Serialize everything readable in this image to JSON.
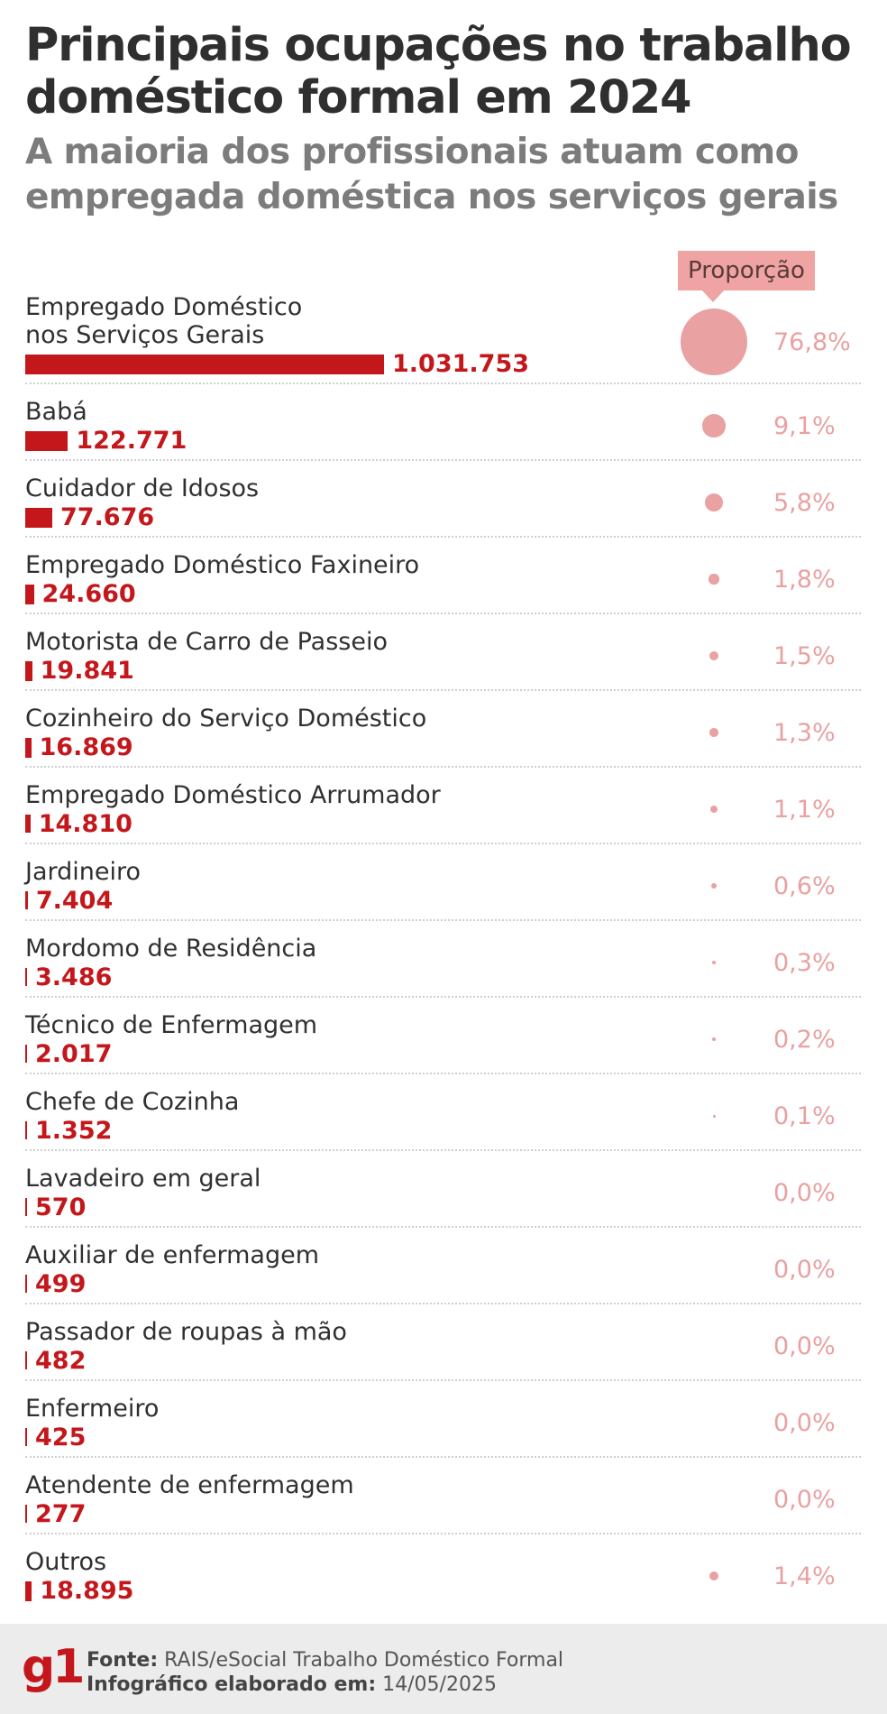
{
  "header": {
    "title_lines": [
      "Principais ocupações no trabalho",
      "doméstico formal em 2024"
    ],
    "subtitle_lines": [
      "A maioria dos profissionais atuam como",
      "empregada doméstica nos serviços gerais"
    ]
  },
  "proportion_label": "Proporção",
  "chart_data": {
    "type": "bar",
    "orientation": "horizontal",
    "categories": [
      "Empregado Doméstico nos Serviços Gerais",
      "Babá",
      "Cuidador de Idosos",
      "Empregado Doméstico Faxineiro",
      "Motorista de Carro de Passeio",
      "Cozinheiro do Serviço Doméstico",
      "Empregado Doméstico Arrumador",
      "Jardineiro",
      "Mordomo de Residência",
      "Técnico de Enfermagem",
      "Chefe de Cozinha",
      "Lavadeiro em geral",
      "Auxiliar de enfermagem",
      "Passador de roupas à mão",
      "Enfermeiro",
      "Atendente de enfermagem",
      "Outros"
    ],
    "label_lines": [
      [
        "Empregado Doméstico",
        "nos Serviços Gerais"
      ],
      [
        "Babá"
      ],
      [
        "Cuidador de Idosos"
      ],
      [
        "Empregado Doméstico Faxineiro"
      ],
      [
        "Motorista de Carro de Passeio"
      ],
      [
        "Cozinheiro do Serviço Doméstico"
      ],
      [
        "Empregado Doméstico Arrumador"
      ],
      [
        "Jardineiro"
      ],
      [
        "Mordomo de Residência"
      ],
      [
        "Técnico de Enfermagem"
      ],
      [
        "Chefe de Cozinha"
      ],
      [
        "Lavadeiro em geral"
      ],
      [
        "Auxiliar de enfermagem"
      ],
      [
        "Passador de roupas à mão"
      ],
      [
        "Enfermeiro"
      ],
      [
        "Atendente de enfermagem"
      ],
      [
        "Outros"
      ]
    ],
    "values": [
      1031753,
      122771,
      77676,
      24660,
      19841,
      16869,
      14810,
      7404,
      3486,
      2017,
      1352,
      570,
      499,
      482,
      425,
      277,
      18895
    ],
    "value_labels": [
      "1.031.753",
      "122.771",
      "77.676",
      "24.660",
      "19.841",
      "16.869",
      "14.810",
      "7.404",
      "3.486",
      "2.017",
      "1.352",
      "570",
      "499",
      "482",
      "425",
      "277",
      "18.895"
    ],
    "proportions": [
      76.8,
      9.1,
      5.8,
      1.8,
      1.5,
      1.3,
      1.1,
      0.6,
      0.3,
      0.2,
      0.1,
      0.0,
      0.0,
      0.0,
      0.0,
      0.0,
      1.4
    ],
    "proportion_labels": [
      "76,8%",
      "9,1%",
      "5,8%",
      "1,8%",
      "1,5%",
      "1,3%",
      "1,1%",
      "0,6%",
      "0,3%",
      "0,2%",
      "0,1%",
      "0,0%",
      "0,0%",
      "0,0%",
      "0,0%",
      "0,0%",
      "1,4%"
    ],
    "colors": {
      "bar": "#c4171b",
      "proportion": "#e9a1a1"
    }
  },
  "footer": {
    "logo": "g1",
    "source_label": "Fonte:",
    "source_value": "RAIS/eSocial Trabalho Doméstico Formal",
    "date_label": "Infográfico elaborado em:",
    "date_value": "14/05/2025"
  }
}
